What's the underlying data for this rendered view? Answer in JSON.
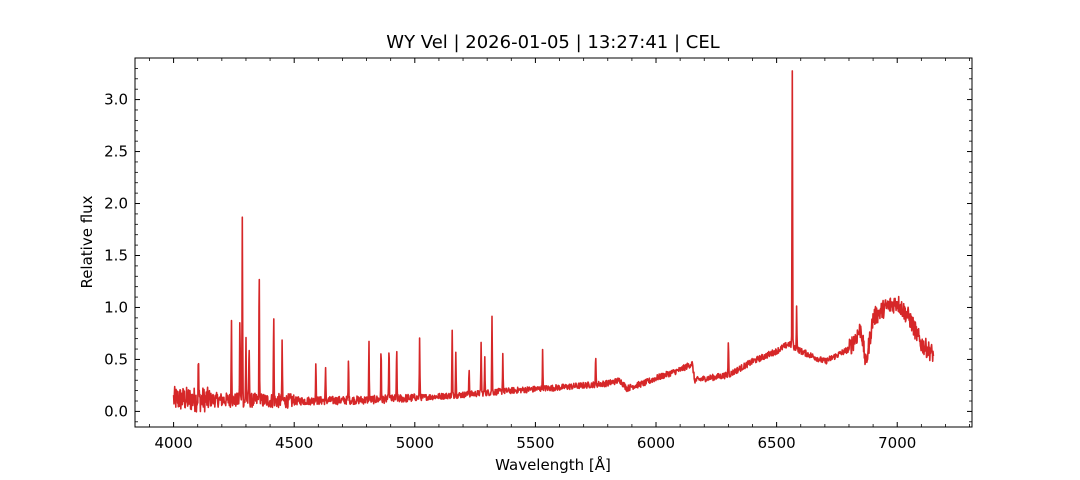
{
  "chart_data": {
    "type": "line",
    "title": "WY Vel | 2026-01-05 | 13:27:41 | CEL",
    "xlabel": "Wavelength [Å]",
    "ylabel": "Relative flux",
    "xlim": [
      3840,
      7310
    ],
    "ylim": [
      -0.15,
      3.4
    ],
    "xticks": [
      "4000",
      "4500",
      "5000",
      "5500",
      "6000",
      "6500",
      "7000"
    ],
    "yticks": [
      "0.0",
      "0.5",
      "1.0",
      "1.5",
      "2.0",
      "2.5",
      "3.0"
    ],
    "grid": false,
    "series": [
      {
        "color": "#d62728",
        "continuum": [
          [
            4000,
            0.12
          ],
          [
            4200,
            0.11
          ],
          [
            4500,
            0.1
          ],
          [
            4800,
            0.11
          ],
          [
            5000,
            0.13
          ],
          [
            5200,
            0.16
          ],
          [
            5400,
            0.2
          ],
          [
            5600,
            0.23
          ],
          [
            5800,
            0.27
          ],
          [
            5850,
            0.3
          ],
          [
            5880,
            0.22
          ],
          [
            5900,
            0.24
          ],
          [
            5950,
            0.27
          ],
          [
            6000,
            0.32
          ],
          [
            6100,
            0.4
          ],
          [
            6150,
            0.46
          ],
          [
            6160,
            0.3
          ],
          [
            6300,
            0.35
          ],
          [
            6400,
            0.48
          ],
          [
            6500,
            0.58
          ],
          [
            6550,
            0.65
          ],
          [
            6600,
            0.58
          ],
          [
            6700,
            0.48
          ],
          [
            6800,
            0.6
          ],
          [
            6850,
            0.8
          ],
          [
            6870,
            0.45
          ],
          [
            6900,
            0.9
          ],
          [
            6950,
            1.0
          ],
          [
            7000,
            1.05
          ],
          [
            7050,
            0.9
          ],
          [
            7100,
            0.65
          ],
          [
            7150,
            0.55
          ]
        ],
        "emission_lines": [
          [
            4103,
            0.5
          ],
          [
            4240,
            0.93
          ],
          [
            4275,
            0.88
          ],
          [
            4285,
            1.9
          ],
          [
            4300,
            0.7
          ],
          [
            4313,
            0.65
          ],
          [
            4355,
            1.35
          ],
          [
            4415,
            0.95
          ],
          [
            4450,
            0.62
          ],
          [
            4590,
            0.5
          ],
          [
            4630,
            0.4
          ],
          [
            4725,
            0.5
          ],
          [
            4810,
            0.65
          ],
          [
            4860,
            0.62
          ],
          [
            4893,
            0.65
          ],
          [
            4925,
            0.6
          ],
          [
            5020,
            0.68
          ],
          [
            5155,
            0.77
          ],
          [
            5170,
            0.57
          ],
          [
            5225,
            0.42
          ],
          [
            5275,
            0.68
          ],
          [
            5290,
            0.5
          ],
          [
            5320,
            0.9
          ],
          [
            5365,
            0.55
          ],
          [
            5530,
            0.57
          ],
          [
            5750,
            0.52
          ],
          [
            6300,
            0.7
          ],
          [
            6565,
            3.25
          ],
          [
            6583,
            1.0
          ]
        ]
      }
    ]
  }
}
